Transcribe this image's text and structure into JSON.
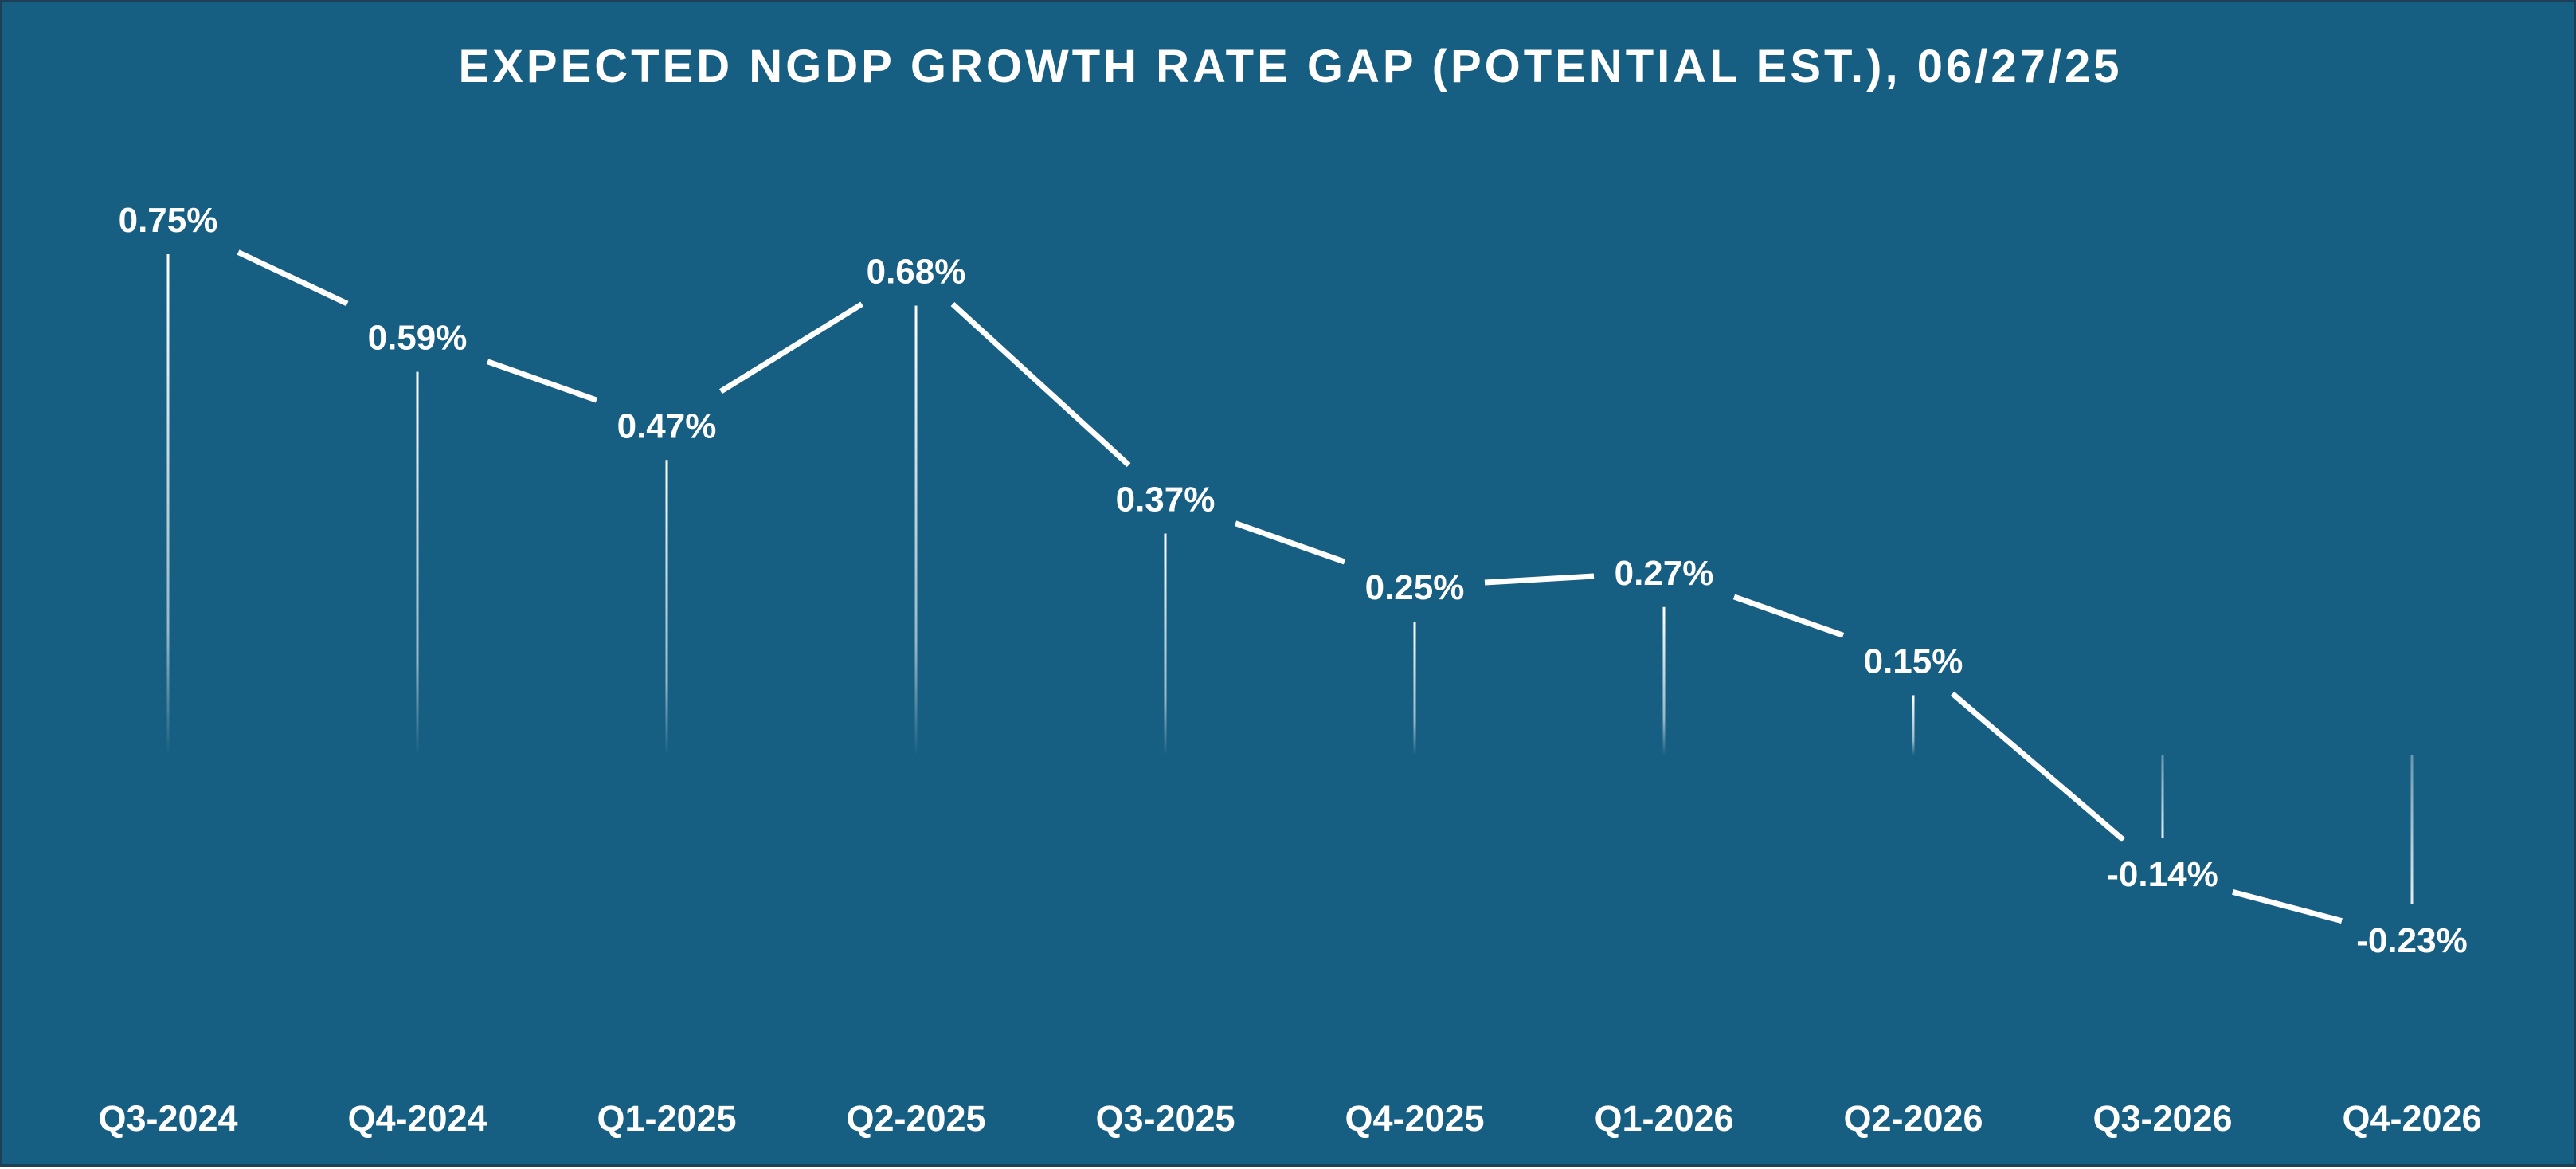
{
  "chart_data": {
    "type": "line",
    "title": "EXPECTED NGDP GROWTH RATE GAP (POTENTIAL EST.), 06/27/25",
    "categories": [
      "Q3-2024",
      "Q4-2024",
      "Q1-2025",
      "Q2-2025",
      "Q3-2025",
      "Q4-2025",
      "Q1-2026",
      "Q2-2026",
      "Q3-2026",
      "Q4-2026"
    ],
    "values": [
      0.75,
      0.59,
      0.47,
      0.68,
      0.37,
      0.25,
      0.27,
      0.15,
      -0.14,
      -0.23
    ],
    "data_labels": [
      "0.75%",
      "0.59%",
      "0.47%",
      "0.68%",
      "0.37%",
      "0.25%",
      "0.27%",
      "0.15%",
      "-0.14%",
      "-0.23%"
    ],
    "xlabel": "",
    "ylabel": "",
    "ylim": [
      -0.23,
      0.75
    ],
    "grid": false,
    "legend": "none",
    "colors": {
      "background": "#175f82",
      "line": "#ffffff",
      "text": "#ffffff",
      "border": "#1f3f57"
    }
  }
}
